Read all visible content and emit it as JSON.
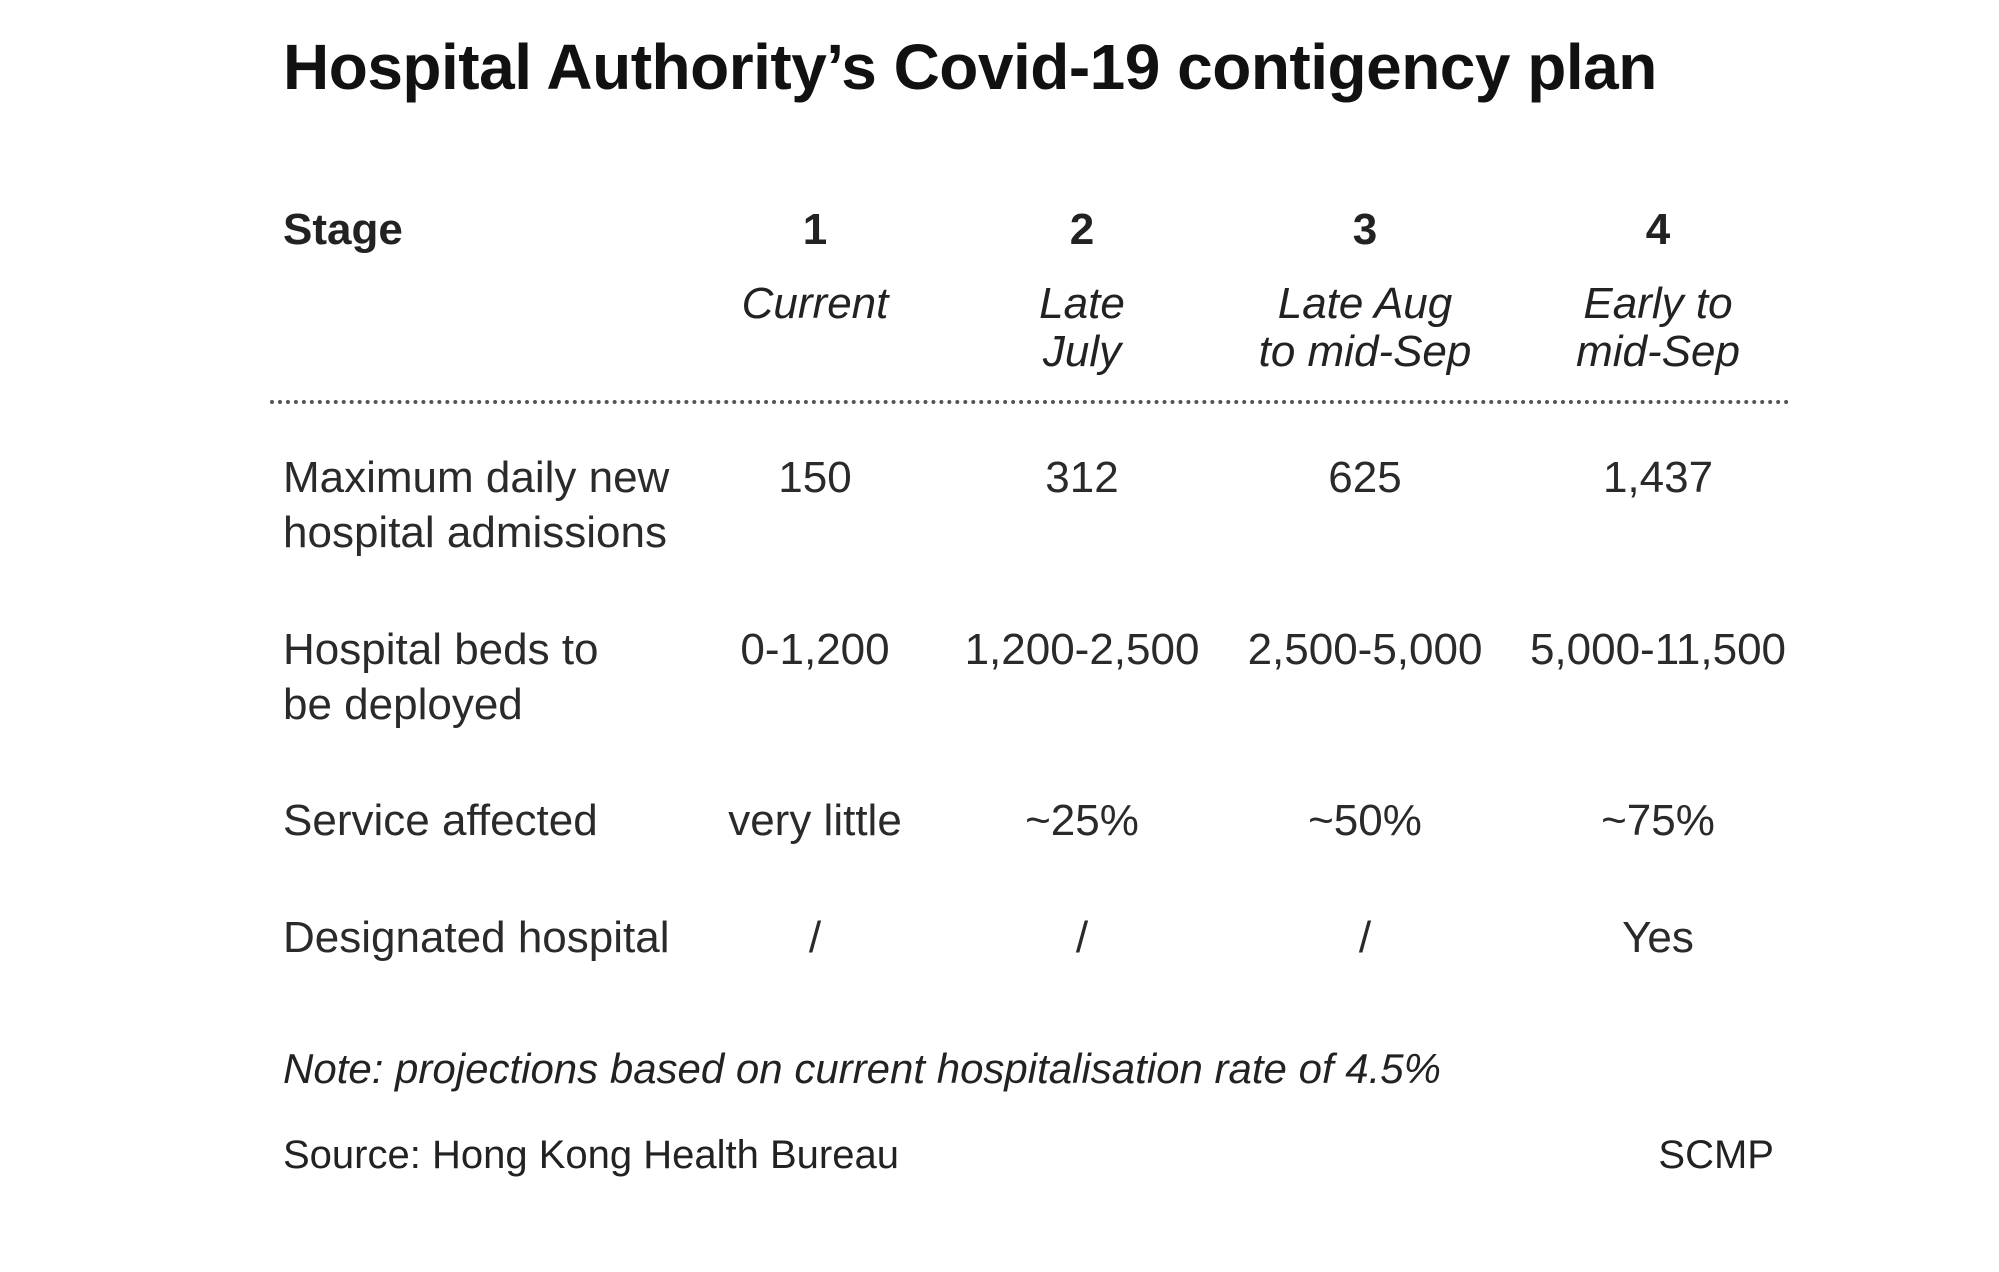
{
  "title": "Hospital Authority’s Covid-19 contigency plan",
  "chart_data": {
    "type": "table",
    "header_label": "Stage",
    "stages": [
      {
        "number": "1",
        "period": "Current"
      },
      {
        "number": "2",
        "period": "Late\nJuly"
      },
      {
        "number": "3",
        "period": "Late Aug\nto mid-Sep"
      },
      {
        "number": "4",
        "period": "Early to\nmid-Sep"
      }
    ],
    "rows": [
      {
        "label": "Maximum daily new\nhospital admissions",
        "values": [
          "150",
          "312",
          "625",
          "1,437"
        ]
      },
      {
        "label": "Hospital beds to\nbe deployed",
        "values": [
          "0-1,200",
          "1,200-2,500",
          "2,500-5,000",
          "5,000-11,500"
        ]
      },
      {
        "label": "Service affected",
        "values": [
          "very little",
          "~25%",
          "~50%",
          "~75%"
        ]
      },
      {
        "label": "Designated hospital",
        "values": [
          "/",
          "/",
          "/",
          "Yes"
        ]
      }
    ]
  },
  "note": "Note: projections based on current hospitalisation rate of 4.5%",
  "source": "Source: Hong Kong Health Bureau",
  "credit": "SCMP"
}
